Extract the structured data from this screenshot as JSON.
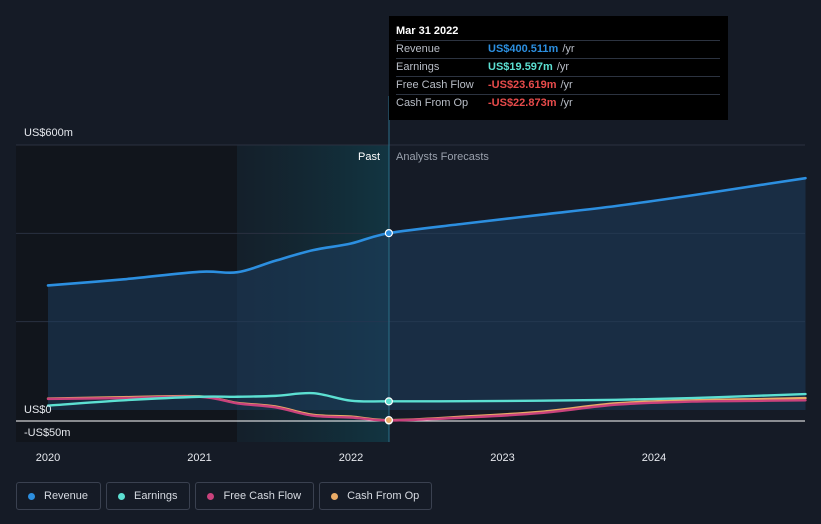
{
  "chart_data": {
    "type": "line",
    "x_axis": {
      "ticks": [
        "2020",
        "2021",
        "2022",
        "2023",
        "2024"
      ]
    },
    "y_axis": {
      "labels": [
        "US$600m",
        "US$0",
        "-US$50m"
      ],
      "ylim": [
        -50,
        600
      ]
    },
    "regions": {
      "past_label": "Past",
      "forecast_label": "Analysts Forecasts"
    },
    "series": [
      {
        "name": "Revenue",
        "color": "#2c8fe0",
        "points": [
          [
            2020.0,
            282
          ],
          [
            2020.5,
            296
          ],
          [
            2021.0,
            313
          ],
          [
            2021.25,
            312
          ],
          [
            2021.5,
            338
          ],
          [
            2021.75,
            362
          ],
          [
            2022.0,
            377
          ],
          [
            2022.25,
            400.5
          ],
          [
            2022.75,
            422
          ],
          [
            2023.25,
            442
          ],
          [
            2023.75,
            462
          ],
          [
            2024.25,
            486
          ],
          [
            2024.75,
            512
          ],
          [
            2025.0,
            525
          ]
        ]
      },
      {
        "name": "Earnings",
        "color": "#5ce0d2",
        "points": [
          [
            2020.0,
            10
          ],
          [
            2020.5,
            22
          ],
          [
            2021.0,
            30
          ],
          [
            2021.25,
            30
          ],
          [
            2021.5,
            32
          ],
          [
            2021.75,
            38
          ],
          [
            2022.0,
            21
          ],
          [
            2022.25,
            19.6
          ],
          [
            2022.75,
            20
          ],
          [
            2023.25,
            21
          ],
          [
            2023.75,
            23
          ],
          [
            2024.25,
            27
          ],
          [
            2024.75,
            33
          ],
          [
            2025.0,
            36
          ]
        ]
      },
      {
        "name": "Free Cash Flow",
        "color": "#c9427c",
        "points": [
          [
            2020.0,
            25
          ],
          [
            2020.5,
            27
          ],
          [
            2021.0,
            30
          ],
          [
            2021.25,
            15
          ],
          [
            2021.5,
            6
          ],
          [
            2021.75,
            -13
          ],
          [
            2022.0,
            -17
          ],
          [
            2022.25,
            -23.6
          ],
          [
            2022.75,
            -17
          ],
          [
            2023.25,
            -7
          ],
          [
            2023.75,
            12
          ],
          [
            2024.25,
            19
          ],
          [
            2024.75,
            21
          ],
          [
            2025.0,
            22
          ]
        ]
      },
      {
        "name": "Cash From Op",
        "color": "#e9ab66",
        "points": [
          [
            2020.0,
            26
          ],
          [
            2020.5,
            29
          ],
          [
            2021.0,
            31
          ],
          [
            2021.25,
            16
          ],
          [
            2021.5,
            8
          ],
          [
            2021.75,
            -11
          ],
          [
            2022.0,
            -15
          ],
          [
            2022.25,
            -22.9
          ],
          [
            2022.75,
            -15
          ],
          [
            2023.25,
            -4
          ],
          [
            2023.75,
            15
          ],
          [
            2024.25,
            22
          ],
          [
            2024.75,
            25
          ],
          [
            2025.0,
            27
          ]
        ]
      }
    ],
    "tooltip": {
      "date": "Mar 31 2022",
      "rows": [
        {
          "name": "Revenue",
          "value": "US$400.511m",
          "unit": "/yr",
          "color": "#2c8fe0"
        },
        {
          "name": "Earnings",
          "value": "US$19.597m",
          "unit": "/yr",
          "color": "#5ce0d2"
        },
        {
          "name": "Free Cash Flow",
          "value": "-US$23.619m",
          "unit": "/yr",
          "color": "#e84b4b"
        },
        {
          "name": "Cash From Op",
          "value": "-US$22.873m",
          "unit": "/yr",
          "color": "#e84b4b"
        }
      ]
    },
    "grid": true,
    "legend": "bottom-left"
  }
}
